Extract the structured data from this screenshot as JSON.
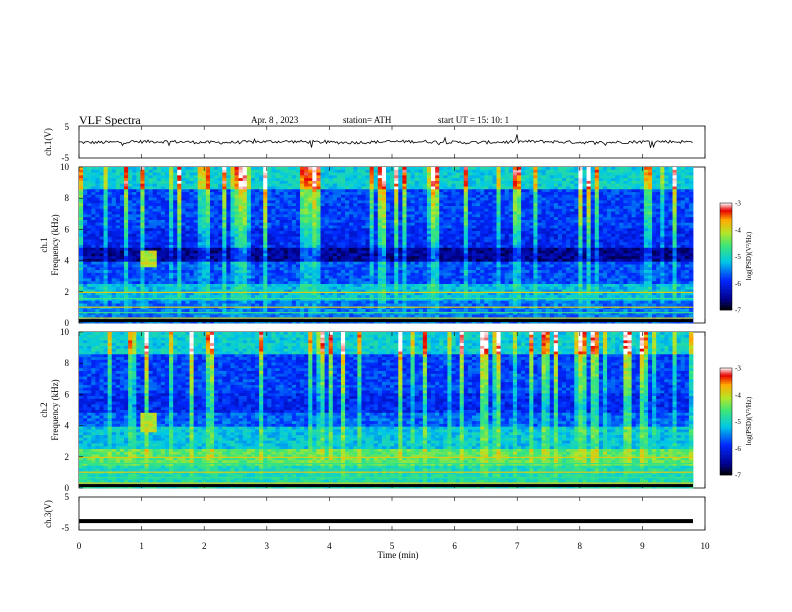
{
  "header": {
    "title": "VLF  Spectra",
    "date": "Apr. 8  , 2023",
    "station": "station= ATH",
    "start_ut": "start  UT  =    15: 10: 1"
  },
  "chart_data": [
    {
      "type": "line",
      "panel": "ch1-waveform",
      "ylabel": "ch.1(V)",
      "yticks": [
        "5",
        "-5"
      ],
      "ylim": [
        -5,
        5
      ],
      "description_level_v": 0
    },
    {
      "type": "heatmap",
      "panel": "ch1-spectrogram",
      "ylabel": "ch.1\nFrequency (kHz)",
      "ylabel_line1": "ch.1",
      "ylabel_line2": "Frequency  (kHz)",
      "yticks": [
        "10",
        "8",
        "6",
        "4",
        "2",
        "0"
      ],
      "ylim": [
        0,
        10
      ],
      "xlim": [
        0,
        9.8
      ],
      "colorbar": {
        "label": "log(PSD)(V²/Hz)",
        "ticks": [
          "-3",
          "-4",
          "-5",
          "-6",
          "-7"
        ],
        "range": [
          -7,
          -3
        ]
      },
      "features": [
        {
          "name": "burst",
          "t_start": 0.95,
          "t_end": 1.25,
          "f_low": 3.5,
          "f_high": 4.6
        }
      ]
    },
    {
      "type": "heatmap",
      "panel": "ch2-spectrogram",
      "ylabel_line1": "ch.2",
      "ylabel_line2": "Frequency  (kHz)",
      "yticks": [
        "10",
        "8",
        "6",
        "4",
        "2",
        "0"
      ],
      "ylim": [
        0,
        10
      ],
      "xlim": [
        0,
        9.8
      ],
      "colorbar": {
        "label": "log(PSD)(V²/Hz)",
        "ticks": [
          "-3",
          "-4",
          "-5",
          "-6",
          "-7"
        ],
        "range": [
          -7,
          -3
        ]
      },
      "features": [
        {
          "name": "burst",
          "t_start": 0.95,
          "t_end": 1.25,
          "f_low": 3.6,
          "f_high": 4.8
        }
      ]
    },
    {
      "type": "line",
      "panel": "ch3-waveform",
      "ylabel": "ch.3(V)",
      "yticks": [
        "5",
        "-5"
      ],
      "ylim": [
        -5,
        5
      ],
      "level_v": -2.3
    }
  ],
  "xaxis": {
    "label": "Time  (min)",
    "ticks": [
      "0",
      "1",
      "2",
      "3",
      "4",
      "5",
      "6",
      "7",
      "8",
      "9",
      "10"
    ],
    "range": [
      0,
      10
    ]
  }
}
